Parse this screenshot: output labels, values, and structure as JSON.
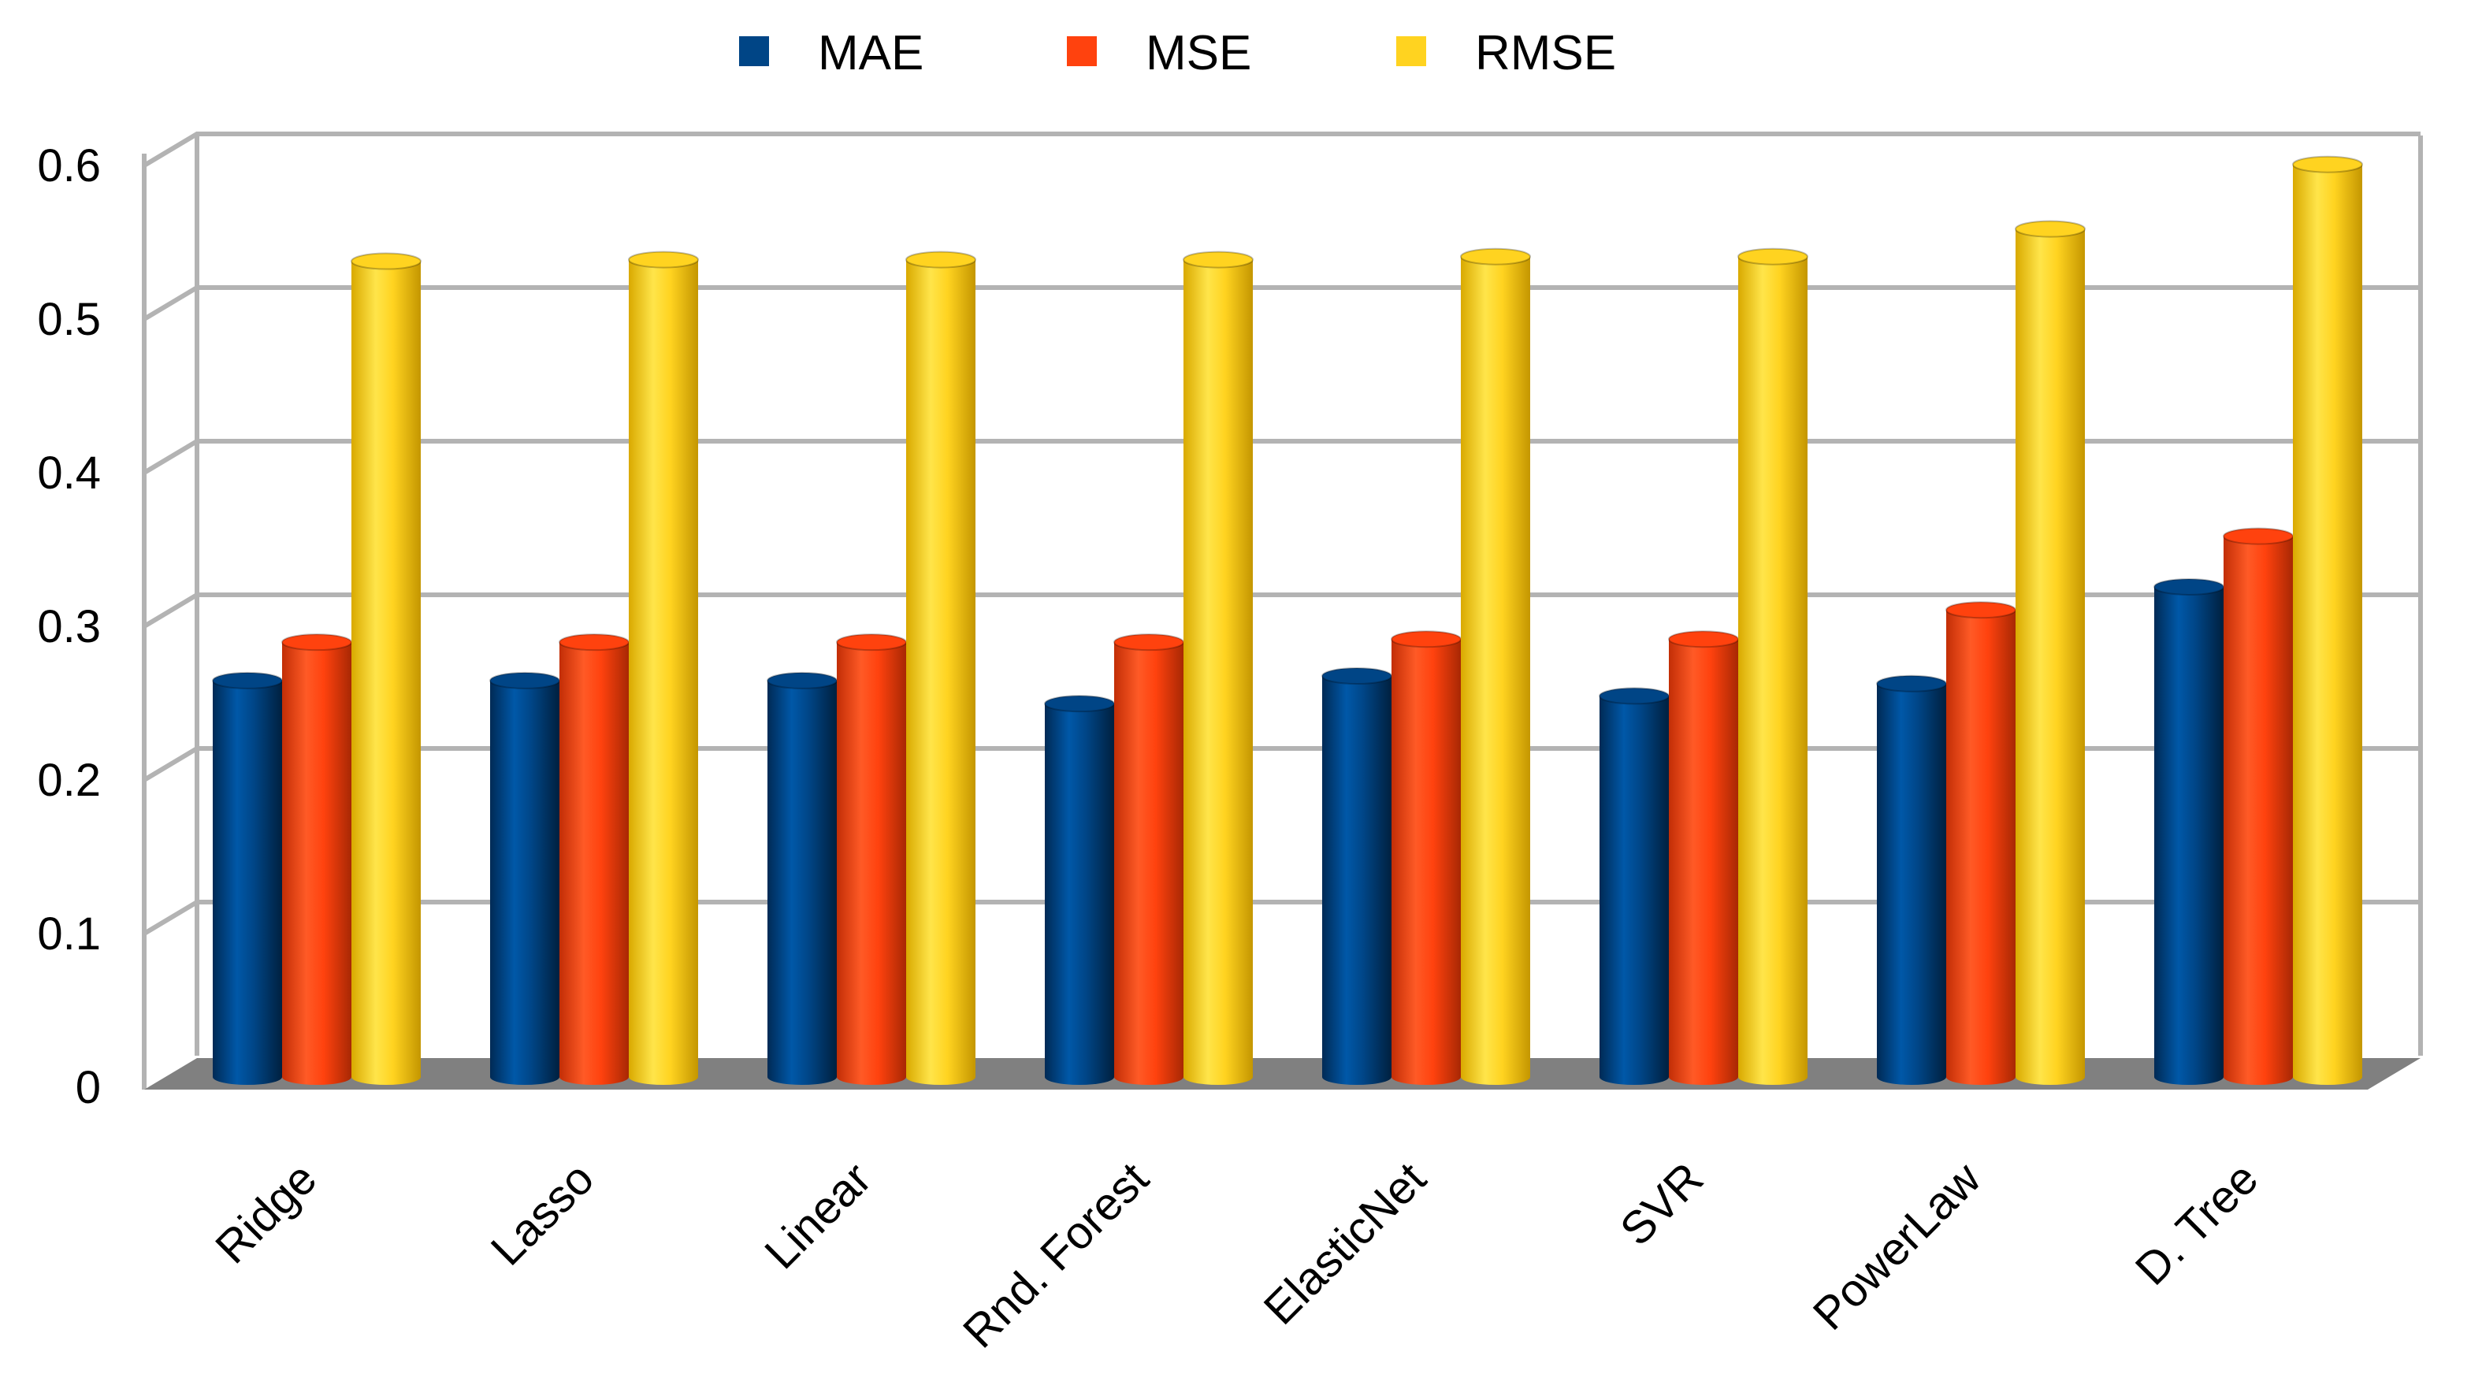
{
  "chart_data": {
    "type": "bar",
    "title": "",
    "xlabel": "",
    "ylabel": "",
    "ylim": [
      0,
      0.6
    ],
    "yticks": [
      "0",
      "0.1",
      "0.2",
      "0.3",
      "0.4",
      "0.5",
      "0.6"
    ],
    "categories": [
      "Ridge",
      "Lasso",
      "Linear",
      "Rnd. Forest",
      "ElasticNet",
      "SVR",
      "PowerLaw",
      "D. Tree"
    ],
    "series": [
      {
        "name": "MAE",
        "color": "#004586",
        "values": [
          0.258,
          0.258,
          0.258,
          0.243,
          0.261,
          0.248,
          0.256,
          0.319
        ]
      },
      {
        "name": "MSE",
        "color": "#ff420e",
        "values": [
          0.283,
          0.283,
          0.283,
          0.283,
          0.285,
          0.285,
          0.304,
          0.352
        ]
      },
      {
        "name": "RMSE",
        "color": "#ffd320",
        "values": [
          0.531,
          0.532,
          0.532,
          0.532,
          0.534,
          0.534,
          0.552,
          0.594
        ]
      }
    ],
    "legend_position": "top",
    "grid": true,
    "style": "3d-cylinder"
  }
}
